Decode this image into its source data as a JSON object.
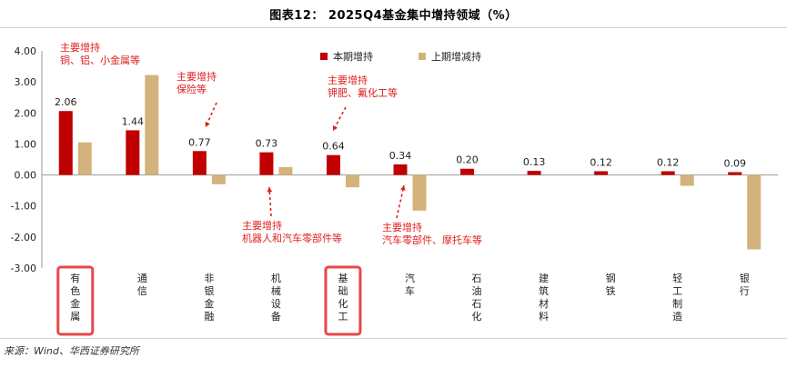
{
  "title": "图表12： 2025Q4基金集中增持领域（%）",
  "source": "来源：Wind、华西证券研究所",
  "colors": {
    "current": "#c00000",
    "previous": "#d3b27b",
    "highlight_box": "#e8474b",
    "annotation": "#e02020"
  },
  "chart_data": {
    "type": "bar",
    "categories": [
      "有色金属",
      "通信",
      "非银金融",
      "机械设备",
      "基础化工",
      "汽车",
      "石油石化",
      "建筑材料",
      "钢铁",
      "轻工制造",
      "银行"
    ],
    "highlighted_categories": [
      "有色金属",
      "基础化工"
    ],
    "series": [
      {
        "name": "本期增持",
        "values": [
          2.06,
          1.44,
          0.77,
          0.73,
          0.64,
          0.34,
          0.2,
          0.13,
          0.12,
          0.12,
          0.09
        ]
      },
      {
        "name": "上期增减持",
        "values": [
          1.05,
          3.22,
          -0.3,
          0.25,
          -0.4,
          -1.15,
          0.0,
          0.0,
          0.0,
          -0.35,
          -2.4
        ]
      }
    ],
    "data_labels": [
      "2.06",
      "1.44",
      "0.77",
      "0.73",
      "0.64",
      "0.34",
      "0.20",
      "0.13",
      "0.12",
      "0.12",
      "0.09"
    ],
    "ylim": [
      -3.0,
      4.0
    ],
    "yticks": [
      "4.00",
      "3.00",
      "2.00",
      "1.00",
      "0.00",
      "-1.00",
      "-2.00",
      "-3.00"
    ],
    "ytick_values": [
      4,
      3,
      2,
      1,
      0,
      -1,
      -2,
      -3
    ],
    "legend_position": "top-right",
    "grid": false,
    "annotations": [
      {
        "category": "有色金属",
        "lines": [
          "主要增持",
          "铜、铝、小金属等"
        ]
      },
      {
        "category": "非银金融",
        "lines": [
          "主要增持",
          "保险等"
        ]
      },
      {
        "category": "基础化工",
        "lines": [
          "主要增持",
          "钾肥、氟化工等"
        ]
      },
      {
        "category": "机械设备",
        "lines": [
          "主要增持",
          "机器人和汽车零部件等"
        ]
      },
      {
        "category": "汽车",
        "lines": [
          "主要增持",
          "汽车零部件、摩托车等"
        ]
      }
    ]
  }
}
